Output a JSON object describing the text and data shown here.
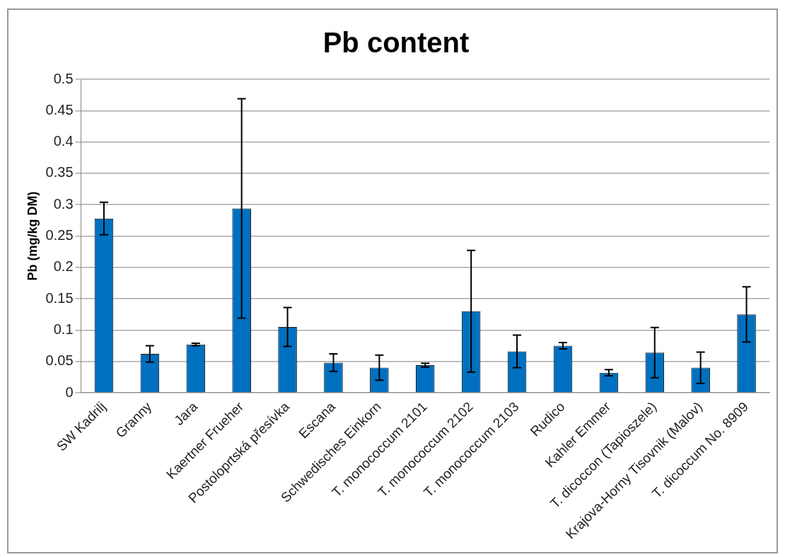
{
  "chart_data": {
    "type": "bar",
    "title": "Pb content",
    "ylabel": "Pb (mg/kg DM)",
    "categories": [
      "SW Kadrilj",
      "Granny",
      "Jara",
      "Kaertner Frueher",
      "Postoloprtská přesívka",
      "Escana",
      "Schwedisches Einkorn",
      "T. monococcum 2101",
      "T. monococcum 2102",
      "T. monococcum 2103",
      "Rudico",
      "Kahler Emmer",
      "T. dicoccon (Tapioszele)",
      "Krajova-Horny Tisovnik (Malov)",
      "T. dicoccum No. 8909"
    ],
    "values": [
      0.278,
      0.062,
      0.077,
      0.294,
      0.105,
      0.048,
      0.04,
      0.044,
      0.13,
      0.066,
      0.075,
      0.032,
      0.064,
      0.04,
      0.125
    ],
    "errors": [
      0.026,
      0.013,
      0.002,
      0.175,
      0.031,
      0.014,
      0.02,
      0.003,
      0.097,
      0.026,
      0.005,
      0.005,
      0.04,
      0.025,
      0.044
    ],
    "color": "#0070c0",
    "ylim": [
      0,
      0.5
    ],
    "yticks": [
      0,
      0.05,
      0.1,
      0.15,
      0.2,
      0.25,
      0.3,
      0.35,
      0.4,
      0.45,
      0.5
    ],
    "grid": "y",
    "legend": false
  }
}
